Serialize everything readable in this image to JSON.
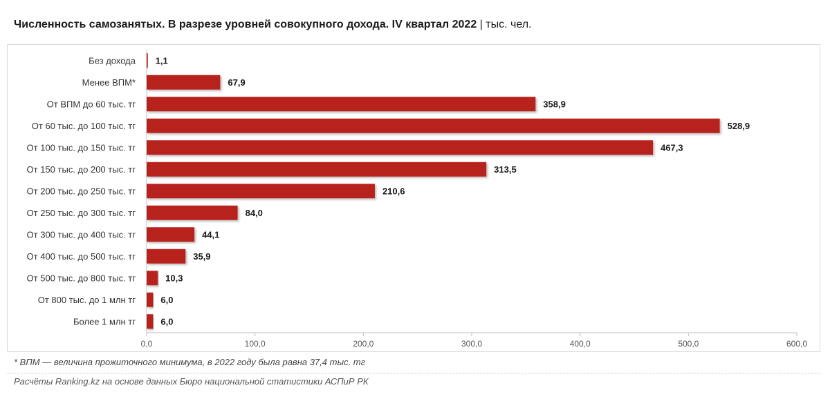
{
  "title": {
    "main": "Численность самозанятых. В разрезе уровней совокупного дохода. IV квартал 2022",
    "separator": "|",
    "unit": "тыс. чел."
  },
  "footnote": "* ВПМ — величина прожиточного минимума, в 2022 году была равна 37,4 тыс. тг",
  "source": "Расчёты Ranking.kz на основе данных Бюро национальной статистики АСПиР РК",
  "chart_data": {
    "type": "bar",
    "orientation": "horizontal",
    "categories": [
      "Без дохода",
      "Менее ВПМ*",
      "От ВПМ до 60 тыс. тг",
      "От 60 тыс. до 100 тыс. тг",
      "От 100 тыс. до 150 тыс. тг",
      "От 150 тыс. до 200 тыс. тг",
      "От 200 тыс. до 250 тыс. тг",
      "От 250 тыс. до 300 тыс. тг",
      "От 300 тыс. до 400 тыс. тг",
      "От 400 тыс. до 500 тыс. тг",
      "От 500 тыс. до 800 тыс. тг",
      "От 800 тыс. до 1 млн тг",
      "Более 1 млн тг"
    ],
    "values": [
      1.1,
      67.9,
      358.9,
      528.9,
      467.3,
      313.5,
      210.6,
      84.0,
      44.1,
      35.9,
      10.3,
      6.0,
      6.0
    ],
    "value_labels": [
      "1,1",
      "67,9",
      "358,9",
      "528,9",
      "467,3",
      "313,5",
      "210,6",
      "84,0",
      "44,1",
      "35,9",
      "10,3",
      "6,0",
      "6,0"
    ],
    "xlim": [
      0,
      600
    ],
    "x_ticks": [
      0,
      100,
      200,
      300,
      400,
      500,
      600
    ],
    "x_tick_labels": [
      "0,0",
      "100,0",
      "200,0",
      "300,0",
      "400,0",
      "500,0",
      "600,0"
    ],
    "grid": false,
    "bar_color": "#b8231e"
  }
}
